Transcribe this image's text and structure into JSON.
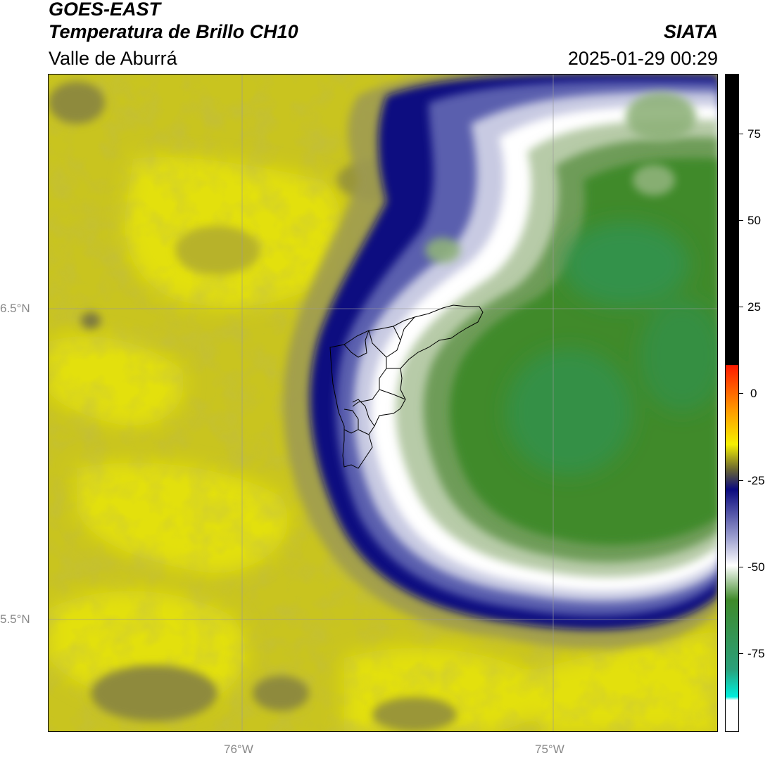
{
  "header": {
    "satellite": "GOES-EAST",
    "product": "Temperatura de Brillo CH10",
    "region": "Valle de Aburrá",
    "agency": "SIATA",
    "timestamp": "2025-01-29 00:29"
  },
  "map": {
    "lat_labels": [
      "6.5°N",
      "5.5°N"
    ],
    "lon_labels": [
      "76°W",
      "75°W"
    ],
    "colors": {
      "yellow": "#e2e00c",
      "olive": "#c8c31e",
      "dark_olive": "#8f8a3a",
      "navy": "#0b0f80",
      "blue": "#3a3f9c",
      "lavender": "#b4b8d8",
      "white": "#ffffff",
      "pale_green": "#b5c9a6",
      "green": "#3f8a2a",
      "teal_green": "#2e9454"
    }
  },
  "colorbar": {
    "tick_labels": [
      "75",
      "50",
      "25",
      "0",
      "-25",
      "-50",
      "-75"
    ],
    "stops": [
      {
        "value": 92,
        "color": "#000000"
      },
      {
        "value": 8,
        "color": "#000000"
      },
      {
        "value": 7.9,
        "color": "#ff1a00"
      },
      {
        "value": -5,
        "color": "#ff9900"
      },
      {
        "value": -15,
        "color": "#f5f000"
      },
      {
        "value": -22,
        "color": "#6e6a30"
      },
      {
        "value": -28,
        "color": "#0a0a7e"
      },
      {
        "value": -42,
        "color": "#9da0d0"
      },
      {
        "value": -50,
        "color": "#ffffff"
      },
      {
        "value": -60,
        "color": "#3f8a2a"
      },
      {
        "value": -80,
        "color": "#2aa07a"
      },
      {
        "value": -88,
        "color": "#00eedd"
      },
      {
        "value": -89,
        "color": "#ffffff"
      }
    ]
  }
}
